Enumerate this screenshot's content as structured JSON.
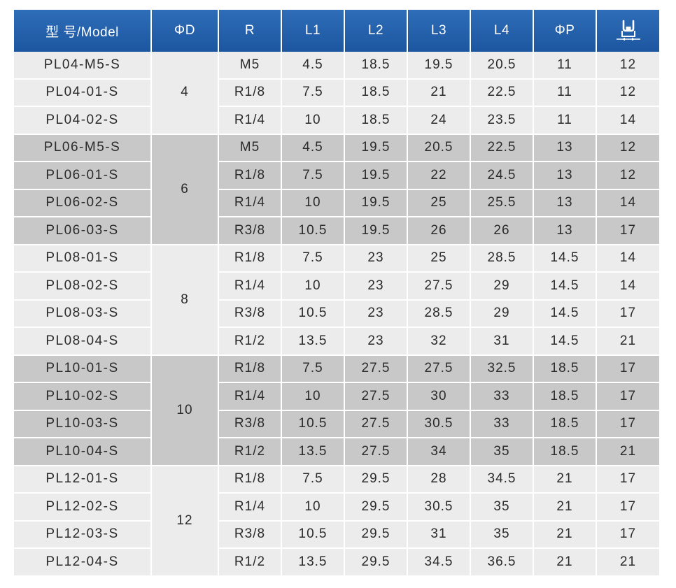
{
  "header": {
    "model": "型 号/Model",
    "od": "ΦD",
    "r": "R",
    "l1": "L1",
    "l2": "L2",
    "l3": "L3",
    "l4": "L4",
    "op": "ΦP",
    "hex_icon": "wrench-hex-size-icon"
  },
  "colors": {
    "header_bg": "#1f5aa6",
    "row_light": "#ececec",
    "row_dark": "#c8c8c8"
  },
  "groups": [
    {
      "od": "4",
      "rows": [
        {
          "model": "PL04-M5-S",
          "r": "M5",
          "l1": "4.5",
          "l2": "18.5",
          "l3": "19.5",
          "l4": "20.5",
          "op": "11",
          "hex": "12"
        },
        {
          "model": "PL04-01-S",
          "r": "R1/8",
          "l1": "7.5",
          "l2": "18.5",
          "l3": "21",
          "l4": "22.5",
          "op": "11",
          "hex": "12"
        },
        {
          "model": "PL04-02-S",
          "r": "R1/4",
          "l1": "10",
          "l2": "18.5",
          "l3": "24",
          "l4": "23.5",
          "op": "11",
          "hex": "14"
        }
      ]
    },
    {
      "od": "6",
      "rows": [
        {
          "model": "PL06-M5-S",
          "r": "M5",
          "l1": "4.5",
          "l2": "19.5",
          "l3": "20.5",
          "l4": "22.5",
          "op": "13",
          "hex": "12"
        },
        {
          "model": "PL06-01-S",
          "r": "R1/8",
          "l1": "7.5",
          "l2": "19.5",
          "l3": "22",
          "l4": "24.5",
          "op": "13",
          "hex": "12"
        },
        {
          "model": "PL06-02-S",
          "r": "R1/4",
          "l1": "10",
          "l2": "19.5",
          "l3": "25",
          "l4": "25.5",
          "op": "13",
          "hex": "14"
        },
        {
          "model": "PL06-03-S",
          "r": "R3/8",
          "l1": "10.5",
          "l2": "19.5",
          "l3": "26",
          "l4": "26",
          "op": "13",
          "hex": "17"
        }
      ]
    },
    {
      "od": "8",
      "rows": [
        {
          "model": "PL08-01-S",
          "r": "R1/8",
          "l1": "7.5",
          "l2": "23",
          "l3": "25",
          "l4": "28.5",
          "op": "14.5",
          "hex": "14"
        },
        {
          "model": "PL08-02-S",
          "r": "R1/4",
          "l1": "10",
          "l2": "23",
          "l3": "27.5",
          "l4": "29",
          "op": "14.5",
          "hex": "14"
        },
        {
          "model": "PL08-03-S",
          "r": "R3/8",
          "l1": "10.5",
          "l2": "23",
          "l3": "28.5",
          "l4": "29",
          "op": "14.5",
          "hex": "17"
        },
        {
          "model": "PL08-04-S",
          "r": "R1/2",
          "l1": "13.5",
          "l2": "23",
          "l3": "32",
          "l4": "31",
          "op": "14.5",
          "hex": "21"
        }
      ]
    },
    {
      "od": "10",
      "rows": [
        {
          "model": "PL10-01-S",
          "r": "R1/8",
          "l1": "7.5",
          "l2": "27.5",
          "l3": "27.5",
          "l4": "32.5",
          "op": "18.5",
          "hex": "17"
        },
        {
          "model": "PL10-02-S",
          "r": "R1/4",
          "l1": "10",
          "l2": "27.5",
          "l3": "30",
          "l4": "33",
          "op": "18.5",
          "hex": "17"
        },
        {
          "model": "PL10-03-S",
          "r": "R3/8",
          "l1": "10.5",
          "l2": "27.5",
          "l3": "30.5",
          "l4": "33",
          "op": "18.5",
          "hex": "17"
        },
        {
          "model": "PL10-04-S",
          "r": "R1/2",
          "l1": "13.5",
          "l2": "27.5",
          "l3": "34",
          "l4": "35",
          "op": "18.5",
          "hex": "21"
        }
      ]
    },
    {
      "od": "12",
      "rows": [
        {
          "model": "PL12-01-S",
          "r": "R1/8",
          "l1": "7.5",
          "l2": "29.5",
          "l3": "28",
          "l4": "34.5",
          "op": "21",
          "hex": "17"
        },
        {
          "model": "PL12-02-S",
          "r": "R1/4",
          "l1": "10",
          "l2": "29.5",
          "l3": "30.5",
          "l4": "35",
          "op": "21",
          "hex": "17"
        },
        {
          "model": "PL12-03-S",
          "r": "R3/8",
          "l1": "10.5",
          "l2": "29.5",
          "l3": "31",
          "l4": "35",
          "op": "21",
          "hex": "17"
        },
        {
          "model": "PL12-04-S",
          "r": "R1/2",
          "l1": "13.5",
          "l2": "29.5",
          "l3": "34.5",
          "l4": "36.5",
          "op": "21",
          "hex": "21"
        }
      ]
    }
  ]
}
